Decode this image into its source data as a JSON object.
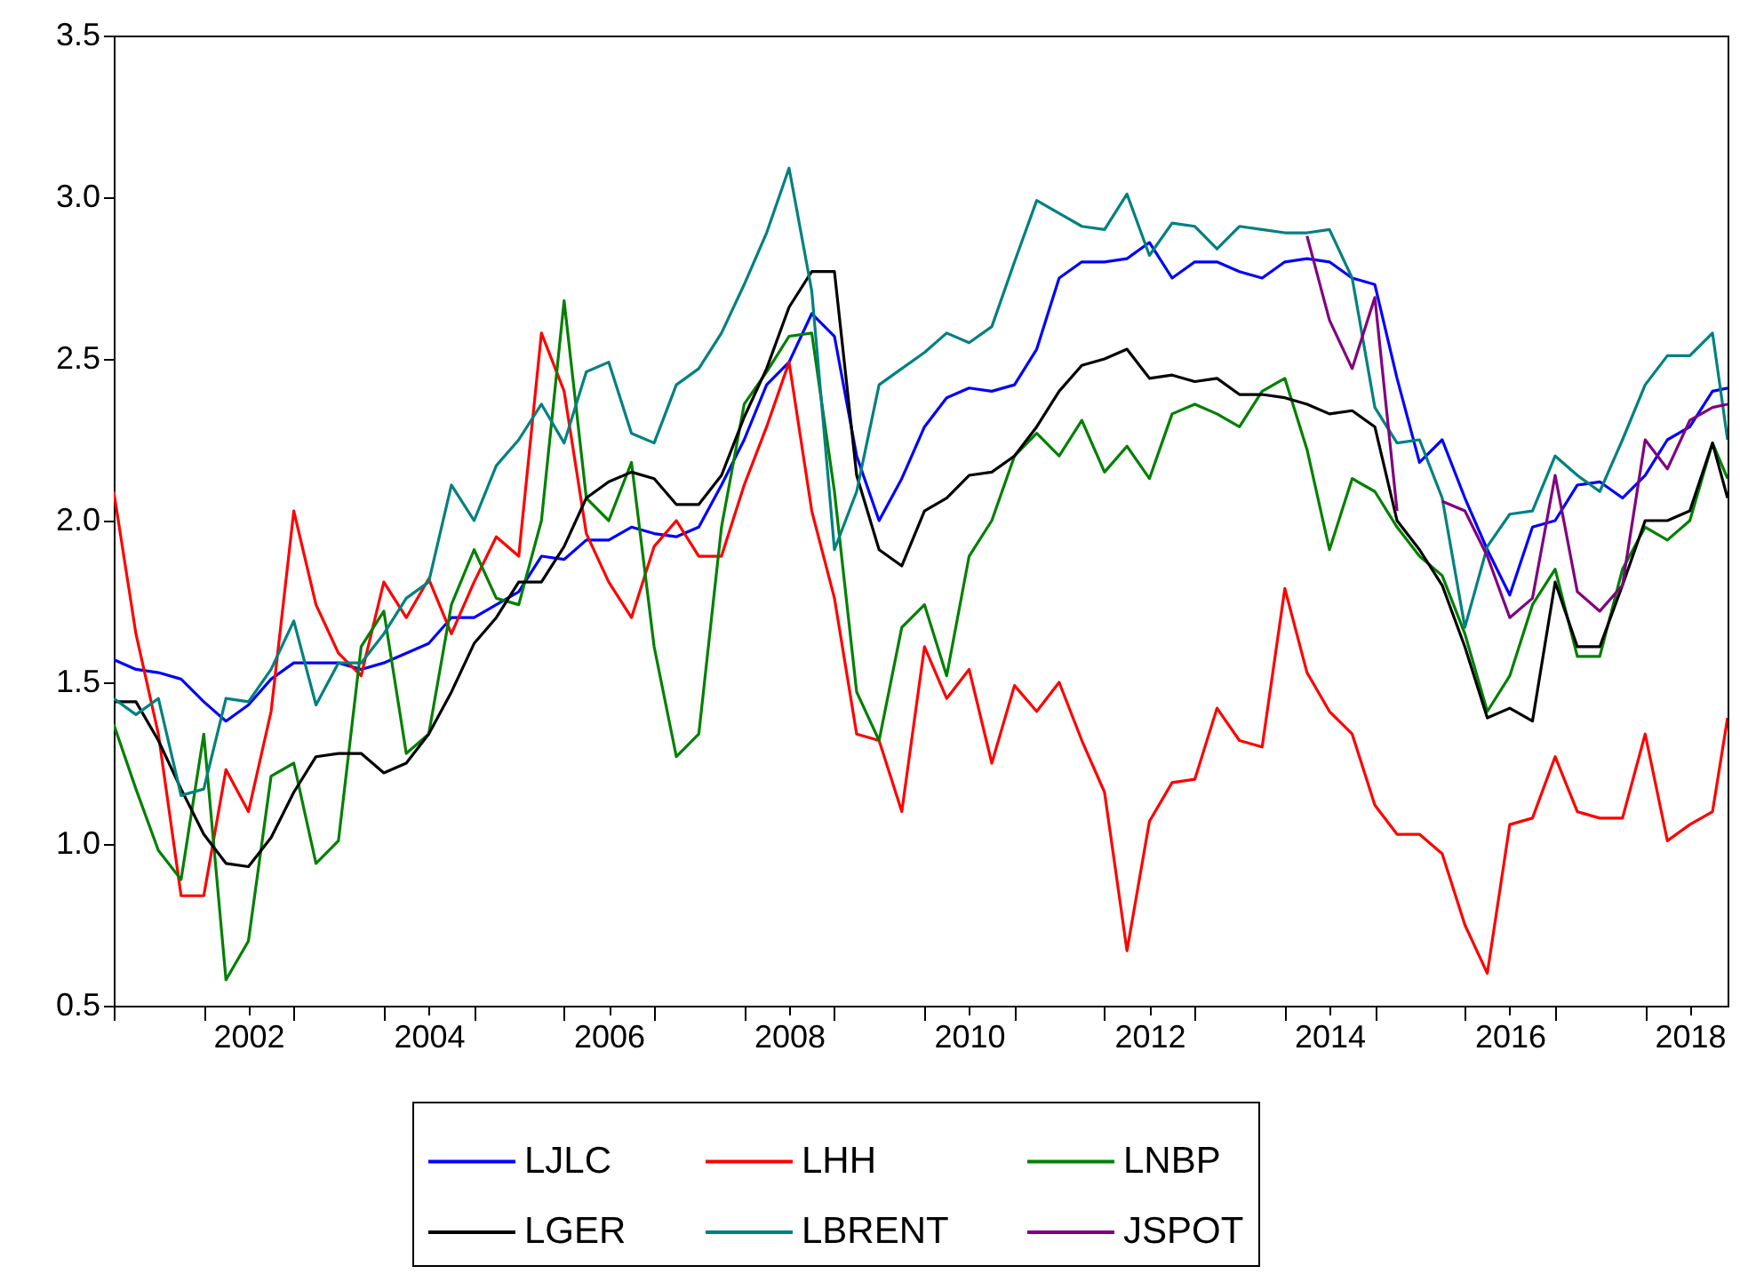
{
  "chart_data": {
    "type": "line",
    "x": [
      "2001-01",
      "2001-04",
      "2001-07",
      "2001-10",
      "2002-01",
      "2002-04",
      "2002-07",
      "2002-10",
      "2003-01",
      "2003-04",
      "2003-07",
      "2003-10",
      "2004-01",
      "2004-04",
      "2004-07",
      "2004-10",
      "2005-01",
      "2005-04",
      "2005-07",
      "2005-10",
      "2006-01",
      "2006-04",
      "2006-07",
      "2006-10",
      "2007-01",
      "2007-04",
      "2007-07",
      "2007-10",
      "2008-01",
      "2008-04",
      "2008-07",
      "2008-10",
      "2009-01",
      "2009-04",
      "2009-07",
      "2009-10",
      "2010-01",
      "2010-04",
      "2010-07",
      "2010-10",
      "2011-01",
      "2011-04",
      "2011-07",
      "2011-10",
      "2012-01",
      "2012-04",
      "2012-07",
      "2012-10",
      "2013-01",
      "2013-04",
      "2013-07",
      "2013-10",
      "2014-01",
      "2014-04",
      "2014-07",
      "2014-10",
      "2015-01",
      "2015-04",
      "2015-07",
      "2015-10",
      "2016-01",
      "2016-04",
      "2016-07",
      "2016-10",
      "2017-01",
      "2017-04",
      "2017-07",
      "2017-10",
      "2018-01",
      "2018-04",
      "2018-07",
      "2018-10",
      "2018-12"
    ],
    "xlim": [
      "2001-01",
      "2018-12"
    ],
    "xticks": [
      {
        "value": "2001",
        "label": null
      },
      {
        "value": "2002",
        "label": null
      },
      {
        "value": "2003",
        "label": null
      },
      {
        "value": "2004",
        "label": null
      },
      {
        "value": "2005",
        "label": null
      },
      {
        "value": "2006",
        "label": null
      },
      {
        "value": "2007",
        "label": null
      },
      {
        "value": "2008",
        "label": null
      },
      {
        "value": "2009",
        "label": null
      },
      {
        "value": "2010",
        "label": null
      },
      {
        "value": "2011",
        "label": null
      },
      {
        "value": "2012",
        "label": null
      },
      {
        "value": "2013",
        "label": null
      },
      {
        "value": "2014",
        "label": null
      },
      {
        "value": "2015",
        "label": null
      },
      {
        "value": "2016",
        "label": null
      },
      {
        "value": "2017",
        "label": null
      },
      {
        "value": "2018",
        "label": null
      },
      {
        "value": "2002-07",
        "label": "2002"
      },
      {
        "value": "2004-07",
        "label": "2004"
      },
      {
        "value": "2006-07",
        "label": "2006"
      },
      {
        "value": "2008-07",
        "label": "2008"
      },
      {
        "value": "2010-07",
        "label": "2010"
      },
      {
        "value": "2012-07",
        "label": "2012"
      },
      {
        "value": "2014-07",
        "label": "2014"
      },
      {
        "value": "2016-07",
        "label": "2016"
      },
      {
        "value": "2018-07",
        "label": "2018"
      }
    ],
    "ylim": [
      0.5,
      3.5
    ],
    "yticks": [
      0.5,
      {
        "value": 1,
        "label": "1.0"
      },
      1.5,
      {
        "value": 2,
        "label": "2.0"
      },
      2.5,
      {
        "value": 3,
        "label": "3.0"
      },
      3.5
    ],
    "legend": "bottom",
    "series": [
      {
        "name": "LJLC",
        "color": "#0000ff",
        "values": [
          1.57,
          1.54,
          1.53,
          1.51,
          1.44,
          1.38,
          1.43,
          1.51,
          1.56,
          1.56,
          1.56,
          1.54,
          1.56,
          1.59,
          1.62,
          1.7,
          1.7,
          1.74,
          1.78,
          1.89,
          1.88,
          1.94,
          1.94,
          1.98,
          1.96,
          1.95,
          1.98,
          2.11,
          2.25,
          2.42,
          2.49,
          2.64,
          2.57,
          2.2,
          2.0,
          2.13,
          2.29,
          2.38,
          2.41,
          2.4,
          2.42,
          2.53,
          2.75,
          2.8,
          2.8,
          2.81,
          2.86,
          2.75,
          2.8,
          2.8,
          2.77,
          2.75,
          2.8,
          2.81,
          2.8,
          2.75,
          2.73,
          2.44,
          2.18,
          2.25,
          2.07,
          1.91,
          1.77,
          1.98,
          2.0,
          2.11,
          2.12,
          2.07,
          2.14,
          2.25,
          2.29,
          2.4,
          2.41
        ]
      },
      {
        "name": "LHH",
        "color": "#ff0000",
        "values": [
          2.09,
          1.65,
          1.34,
          0.84,
          0.84,
          1.23,
          1.1,
          1.41,
          2.03,
          1.74,
          1.59,
          1.52,
          1.81,
          1.7,
          1.82,
          1.65,
          1.81,
          1.95,
          1.89,
          2.58,
          2.4,
          1.96,
          1.81,
          1.7,
          1.92,
          2.0,
          1.89,
          1.89,
          2.11,
          2.29,
          2.49,
          2.03,
          1.76,
          1.34,
          1.32,
          1.1,
          1.61,
          1.45,
          1.54,
          1.25,
          1.49,
          1.41,
          1.5,
          1.32,
          1.16,
          0.67,
          1.07,
          1.19,
          1.2,
          1.42,
          1.32,
          1.3,
          1.79,
          1.53,
          1.41,
          1.34,
          1.12,
          1.03,
          1.03,
          0.97,
          0.75,
          0.6,
          1.06,
          1.08,
          1.27,
          1.1,
          1.08,
          1.08,
          1.34,
          1.01,
          1.06,
          1.1,
          1.39
        ]
      },
      {
        "name": "LNBP",
        "color": "#008000",
        "values": [
          1.37,
          1.17,
          0.98,
          0.89,
          1.34,
          0.58,
          0.7,
          1.21,
          1.25,
          0.94,
          1.01,
          1.61,
          1.72,
          1.28,
          1.34,
          1.74,
          1.91,
          1.76,
          1.74,
          2.0,
          2.68,
          2.07,
          2.0,
          2.18,
          1.61,
          1.27,
          1.34,
          1.98,
          2.36,
          2.46,
          2.57,
          2.58,
          2.09,
          1.47,
          1.32,
          1.67,
          1.74,
          1.52,
          1.89,
          2.0,
          2.2,
          2.27,
          2.2,
          2.31,
          2.15,
          2.23,
          2.13,
          2.33,
          2.36,
          2.33,
          2.29,
          2.4,
          2.44,
          2.22,
          1.91,
          2.13,
          2.09,
          1.98,
          1.89,
          1.83,
          1.65,
          1.41,
          1.52,
          1.74,
          1.85,
          1.58,
          1.58,
          1.85,
          1.98,
          1.94,
          2.0,
          2.24,
          2.13
        ]
      },
      {
        "name": "LGER",
        "color": "#000000",
        "values": [
          1.44,
          1.44,
          1.32,
          1.17,
          1.03,
          0.94,
          0.93,
          1.02,
          1.16,
          1.27,
          1.28,
          1.28,
          1.22,
          1.25,
          1.34,
          1.47,
          1.62,
          1.7,
          1.81,
          1.81,
          1.92,
          2.07,
          2.12,
          2.15,
          2.13,
          2.05,
          2.05,
          2.14,
          2.32,
          2.47,
          2.66,
          2.77,
          2.77,
          2.14,
          1.91,
          1.86,
          2.03,
          2.07,
          2.14,
          2.15,
          2.2,
          2.29,
          2.4,
          2.48,
          2.5,
          2.53,
          2.44,
          2.45,
          2.43,
          2.44,
          2.39,
          2.39,
          2.38,
          2.36,
          2.33,
          2.34,
          2.29,
          2.0,
          1.91,
          1.8,
          1.61,
          1.39,
          1.42,
          1.38,
          1.81,
          1.61,
          1.61,
          1.8,
          2.0,
          2.0,
          2.03,
          2.24,
          2.07
        ]
      },
      {
        "name": "LBRENT",
        "color": "#008080",
        "values": [
          1.45,
          1.4,
          1.45,
          1.15,
          1.17,
          1.45,
          1.44,
          1.54,
          1.69,
          1.43,
          1.56,
          1.56,
          1.65,
          1.76,
          1.81,
          2.11,
          2.0,
          2.17,
          2.25,
          2.36,
          2.24,
          2.46,
          2.49,
          2.27,
          2.24,
          2.42,
          2.47,
          2.58,
          2.73,
          2.89,
          3.09,
          2.71,
          1.91,
          2.09,
          2.42,
          2.47,
          2.52,
          2.58,
          2.55,
          2.6,
          2.8,
          2.99,
          2.95,
          2.91,
          2.9,
          3.01,
          2.82,
          2.92,
          2.91,
          2.84,
          2.91,
          2.9,
          2.89,
          2.89,
          2.9,
          2.75,
          2.35,
          2.24,
          2.25,
          2.07,
          1.67,
          1.92,
          2.02,
          2.03,
          2.2,
          2.14,
          2.09,
          2.25,
          2.42,
          2.51,
          2.51,
          2.58,
          2.25
        ]
      },
      {
        "name": "JSPOT",
        "color": "#800080",
        "values": [
          null,
          null,
          null,
          null,
          null,
          null,
          null,
          null,
          null,
          null,
          null,
          null,
          null,
          null,
          null,
          null,
          null,
          null,
          null,
          null,
          null,
          null,
          null,
          null,
          null,
          null,
          null,
          null,
          null,
          null,
          null,
          null,
          null,
          null,
          null,
          null,
          null,
          null,
          null,
          null,
          null,
          null,
          null,
          null,
          null,
          null,
          null,
          null,
          null,
          null,
          null,
          null,
          null,
          2.88,
          2.62,
          2.47,
          2.69,
          2.03,
          null,
          2.06,
          2.03,
          1.89,
          1.7,
          1.76,
          2.14,
          1.78,
          1.72,
          1.8,
          2.25,
          2.16,
          2.31,
          2.35,
          2.36
        ]
      }
    ]
  }
}
